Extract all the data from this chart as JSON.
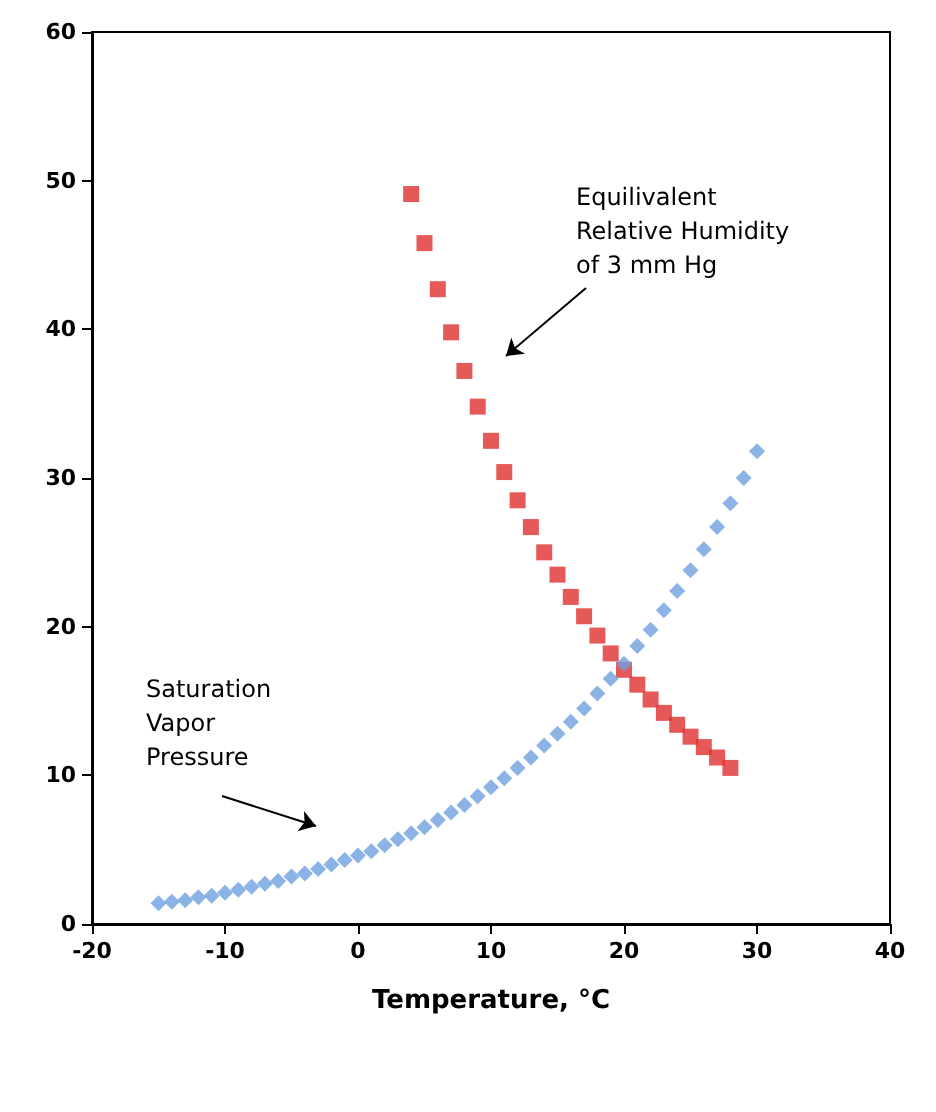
{
  "chart_data": {
    "type": "scatter",
    "xlabel": "Temperature, °C",
    "xlim": [
      -20,
      40
    ],
    "xticks": [
      -20,
      -10,
      0,
      10,
      20,
      30,
      40
    ],
    "ylim": [
      0,
      60
    ],
    "yticks": [
      0,
      10,
      20,
      30,
      40,
      50,
      60
    ],
    "grid": false,
    "series": [
      {
        "color": "#6fa0e0",
        "marker": "diamond",
        "x": [
          -15,
          -14,
          -13,
          -12,
          -11,
          -10,
          -9,
          -8,
          -7,
          -6,
          -5,
          -4,
          -3,
          -2,
          -1,
          0,
          1,
          2,
          3,
          4,
          5,
          6,
          7,
          8,
          9,
          10,
          11,
          12,
          13,
          14,
          15,
          16,
          17,
          18,
          19,
          20,
          21,
          22,
          23,
          24,
          25,
          26,
          27,
          28,
          29,
          30
        ],
        "values": [
          1.4,
          1.5,
          1.6,
          1.8,
          1.9,
          2.1,
          2.3,
          2.5,
          2.7,
          2.9,
          3.2,
          3.4,
          3.7,
          4.0,
          4.3,
          4.6,
          4.9,
          5.3,
          5.7,
          6.1,
          6.5,
          7.0,
          7.5,
          8.0,
          8.6,
          9.2,
          9.8,
          10.5,
          11.2,
          12.0,
          12.8,
          13.6,
          14.5,
          15.5,
          16.5,
          17.5,
          18.7,
          19.8,
          21.1,
          22.4,
          23.8,
          25.2,
          26.7,
          28.3,
          30.0,
          31.8
        ]
      },
      {
        "color": "#e03030",
        "marker": "square",
        "x": [
          4,
          5,
          6,
          7,
          8,
          9,
          10,
          11,
          12,
          13,
          14,
          15,
          16,
          17,
          18,
          19,
          20,
          21,
          22,
          23,
          24,
          25,
          26,
          27,
          28
        ],
        "values": [
          49.1,
          45.8,
          42.7,
          39.8,
          37.2,
          34.8,
          32.5,
          30.4,
          28.5,
          26.7,
          25.0,
          23.5,
          22.0,
          20.7,
          19.4,
          18.2,
          17.1,
          16.1,
          15.1,
          14.2,
          13.4,
          12.6,
          11.9,
          11.2,
          10.5
        ]
      }
    ],
    "annotations": [
      "Equilivalent\nRelative Humidity\nof 3 mm Hg",
      "Saturation\nVapor\nPressure"
    ]
  }
}
